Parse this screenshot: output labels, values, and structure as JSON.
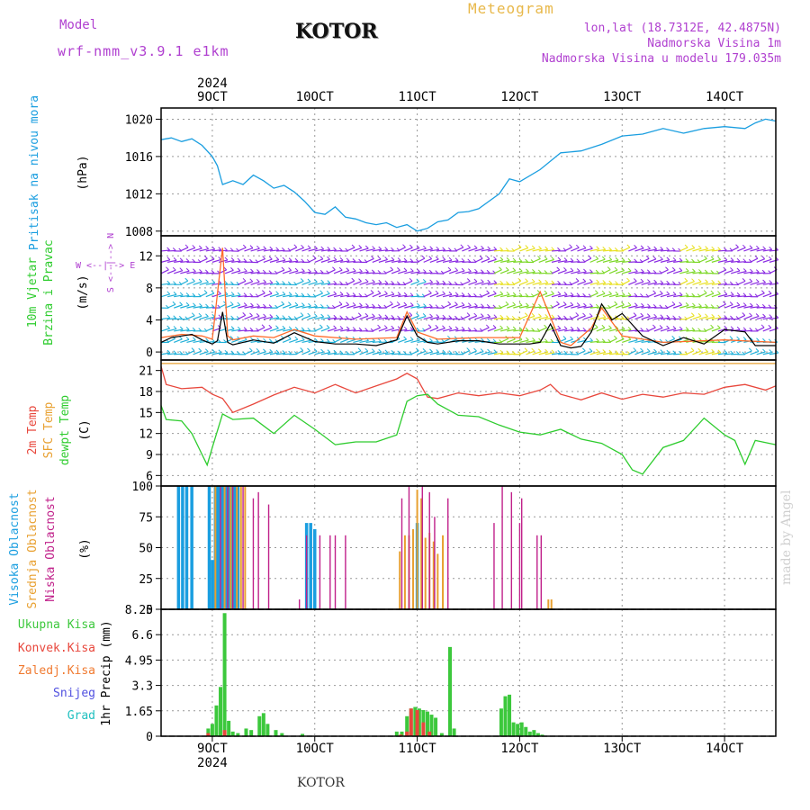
{
  "header": {
    "model_label": "Model",
    "model_name": "wrf-nmm_v3.9.1 e1km",
    "title": "KOTOR",
    "meteogram": "Meteogram",
    "lonlat": "lon,lat (18.7312E, 42.4875N)",
    "altitude": "Nadmorska Visina 1m",
    "model_altitude": "Nadmorska Visina u modelu 179.035m"
  },
  "footer": {
    "place": "KOTOR",
    "made_by": "made by Angel"
  },
  "time_axis": {
    "year": "2024",
    "ticks": [
      {
        "label": "9OCT",
        "day": 9
      },
      {
        "label": "10OCT",
        "day": 10
      },
      {
        "label": "11OCT",
        "day": 11
      },
      {
        "label": "12OCT",
        "day": 12
      },
      {
        "label": "13OCT",
        "day": 13
      },
      {
        "label": "14OCT",
        "day": 14
      }
    ],
    "range_days": [
      8.5,
      14.5
    ]
  },
  "colors": {
    "pressure": "#1a9ee0",
    "wind_speed": "#000000",
    "wind_gust": "#ff6a2a",
    "temp2m": "#e8473c",
    "sfc_temp": "#e8a030",
    "dewpoint": "#2ecc2e",
    "high_cloud": "#1a9ee0",
    "mid_cloud": "#e8a030",
    "low_cloud": "#c0208a",
    "total_precip": "#3cc83c",
    "conv_precip": "#e8473c",
    "frozen_precip": "#f07a30",
    "snow": "#5050e0",
    "hail": "#20c0c0",
    "wind_arrow_purple": "#8a2be2",
    "wind_arrow_cyan": "#20b0d8",
    "wind_arrow_green": "#7ed82a"
  },
  "panels": {
    "pressure": {
      "label1": "Pritisak na nivou mora",
      "label2": "(hPa)"
    },
    "wind": {
      "label1": "10m Vjetar",
      "label2": "Brzina i Pravac",
      "label3": "(m/s)",
      "compass": "W <--|--> E",
      "compass_v": "S <--|--> N"
    },
    "temp": {
      "label1": "2m Temp",
      "label2": "SFC Temp",
      "label3": "dewpt Temp",
      "label4": "(C)"
    },
    "cloud": {
      "label1": "Visoka Oblacnost",
      "label2": "Srednja Oblacnost",
      "label3": "Niska Oblacnost",
      "label4": "(%)"
    },
    "precip": {
      "legend": [
        "Ukupna Kisa",
        "Konvek.Kisa",
        "Zaledj.Kisa",
        "Snijeg",
        "Grad"
      ],
      "ylabel": "1hr Precip (mm)"
    }
  },
  "chart_data": [
    {
      "type": "line",
      "title": "",
      "ylabel": "(hPa)",
      "ylim": [
        1007.5,
        1021.2
      ],
      "yticks": [
        1008,
        1012,
        1016,
        1020
      ],
      "series": [
        {
          "name": "Pritisak na nivou mora",
          "x": [
            8.5,
            8.6,
            8.7,
            8.8,
            8.9,
            9.0,
            9.05,
            9.1,
            9.2,
            9.3,
            9.4,
            9.5,
            9.6,
            9.7,
            9.8,
            9.9,
            10.0,
            10.1,
            10.2,
            10.3,
            10.4,
            10.5,
            10.6,
            10.7,
            10.8,
            10.9,
            11.0,
            11.1,
            11.2,
            11.3,
            11.4,
            11.5,
            11.6,
            11.7,
            11.8,
            11.9,
            12.0,
            12.2,
            12.4,
            12.6,
            12.8,
            13.0,
            13.2,
            13.4,
            13.6,
            13.8,
            14.0,
            14.2,
            14.3,
            14.4,
            14.5
          ],
          "values": [
            1017.8,
            1018.0,
            1017.6,
            1017.9,
            1017.2,
            1016.0,
            1015.0,
            1013.0,
            1013.4,
            1013.0,
            1014.0,
            1013.4,
            1012.6,
            1012.9,
            1012.2,
            1011.2,
            1010.0,
            1009.8,
            1010.6,
            1009.5,
            1009.3,
            1008.9,
            1008.7,
            1008.9,
            1008.4,
            1008.7,
            1008.0,
            1008.3,
            1009.0,
            1009.2,
            1010.0,
            1010.1,
            1010.4,
            1011.2,
            1012.0,
            1013.6,
            1013.3,
            1014.6,
            1016.4,
            1016.6,
            1017.3,
            1018.2,
            1018.4,
            1019.0,
            1018.5,
            1019.0,
            1019.2,
            1019.0,
            1019.6,
            1020.0,
            1019.8
          ]
        }
      ]
    },
    {
      "type": "line",
      "title": "",
      "ylabel": "(m/s)",
      "ylim": [
        -1,
        14.5
      ],
      "yticks": [
        0,
        4,
        8,
        12
      ],
      "series": [
        {
          "name": "wind speed",
          "x": [
            8.5,
            8.6,
            8.7,
            8.8,
            8.9,
            9.0,
            9.05,
            9.1,
            9.15,
            9.2,
            9.4,
            9.6,
            9.8,
            10.0,
            10.2,
            10.4,
            10.6,
            10.8,
            10.9,
            11.0,
            11.1,
            11.2,
            11.4,
            11.6,
            11.8,
            12.0,
            12.1,
            12.2,
            12.3,
            12.4,
            12.5,
            12.6,
            12.7,
            12.8,
            12.9,
            13.0,
            13.2,
            13.4,
            13.6,
            13.8,
            14.0,
            14.2,
            14.3,
            14.5
          ],
          "values": [
            1.2,
            1.8,
            2.0,
            2.2,
            1.5,
            1.0,
            1.4,
            5.0,
            1.2,
            0.9,
            1.5,
            1.1,
            2.4,
            1.3,
            1.0,
            1.0,
            0.8,
            1.5,
            4.5,
            2.0,
            1.2,
            1.0,
            1.4,
            1.4,
            1.0,
            1.0,
            1.0,
            1.2,
            3.5,
            0.8,
            0.5,
            0.7,
            2.5,
            6.0,
            4.0,
            4.8,
            2.0,
            0.8,
            1.8,
            1.0,
            2.8,
            2.5,
            0.8,
            0.8
          ]
        },
        {
          "name": "wind gust",
          "x": [
            8.5,
            8.7,
            8.9,
            9.0,
            9.1,
            9.15,
            9.2,
            9.4,
            9.6,
            9.8,
            10.0,
            10.4,
            10.8,
            10.9,
            11.0,
            11.2,
            11.6,
            12.0,
            12.2,
            12.4,
            12.5,
            12.7,
            12.8,
            13.0,
            13.4,
            14.0,
            14.5
          ],
          "values": [
            1.8,
            2.2,
            2.0,
            1.6,
            13.0,
            2.0,
            1.5,
            2.0,
            1.8,
            2.8,
            2.0,
            1.6,
            1.8,
            5.0,
            2.5,
            1.6,
            1.8,
            1.8,
            7.5,
            1.2,
            0.8,
            3.0,
            5.5,
            2.0,
            1.2,
            1.5,
            1.2
          ]
        }
      ]
    },
    {
      "type": "line",
      "title": "",
      "ylabel": "(C)",
      "ylim": [
        4.5,
        22.5
      ],
      "yticks": [
        6,
        9,
        12,
        15,
        18,
        21
      ],
      "series": [
        {
          "name": "2m Temp",
          "x": [
            8.5,
            8.55,
            8.7,
            8.9,
            9.0,
            9.1,
            9.2,
            9.4,
            9.6,
            9.8,
            10.0,
            10.2,
            10.4,
            10.6,
            10.8,
            10.9,
            11.0,
            11.1,
            11.2,
            11.4,
            11.6,
            11.8,
            12.0,
            12.2,
            12.3,
            12.4,
            12.6,
            12.8,
            13.0,
            13.2,
            13.4,
            13.6,
            13.8,
            14.0,
            14.2,
            14.4,
            14.5
          ],
          "values": [
            21.6,
            19.0,
            18.4,
            18.6,
            17.6,
            17.0,
            15.0,
            16.2,
            17.5,
            18.6,
            17.8,
            19.0,
            17.8,
            18.8,
            19.8,
            20.6,
            19.8,
            17.2,
            17.0,
            17.8,
            17.4,
            17.8,
            17.4,
            18.2,
            19.0,
            17.6,
            16.8,
            17.8,
            16.9,
            17.6,
            17.2,
            17.8,
            17.6,
            18.6,
            19.0,
            18.2,
            18.8
          ]
        },
        {
          "name": "SFC Temp",
          "x": [
            8.5,
            14.5
          ],
          "values": [
            22.0,
            22.0
          ]
        },
        {
          "name": "dewpt Temp",
          "x": [
            8.5,
            8.55,
            8.7,
            8.8,
            8.9,
            8.95,
            9.0,
            9.1,
            9.2,
            9.4,
            9.6,
            9.8,
            10.0,
            10.2,
            10.4,
            10.6,
            10.8,
            10.9,
            11.0,
            11.1,
            11.2,
            11.4,
            11.6,
            11.8,
            12.0,
            12.2,
            12.4,
            12.6,
            12.8,
            13.0,
            13.1,
            13.2,
            13.4,
            13.6,
            13.8,
            14.0,
            14.1,
            14.2,
            14.3,
            14.5
          ],
          "values": [
            16.0,
            14.0,
            13.8,
            12.0,
            9.0,
            7.5,
            10.0,
            14.8,
            14.0,
            14.2,
            12.0,
            14.6,
            12.6,
            10.4,
            10.8,
            10.8,
            11.8,
            16.6,
            17.4,
            17.6,
            16.2,
            14.6,
            14.4,
            13.2,
            12.2,
            11.8,
            12.6,
            11.2,
            10.6,
            9.0,
            6.8,
            6.2,
            10.0,
            11.0,
            14.2,
            11.8,
            11.0,
            7.6,
            11.0,
            10.4
          ]
        }
      ]
    },
    {
      "type": "bar",
      "title": "",
      "ylabel": "(%)",
      "ylim": [
        0,
        100
      ],
      "yticks": [
        0,
        25,
        50,
        75,
        100
      ],
      "series": [
        {
          "name": "Visoka Oblacnost",
          "x": [
            8.67,
            8.71,
            8.75,
            8.8,
            8.97,
            9.0,
            9.03,
            9.06,
            9.1,
            9.13,
            9.16,
            9.19,
            9.22,
            9.25,
            9.92,
            9.96,
            10.0,
            11.0
          ],
          "values": [
            100,
            100,
            100,
            100,
            100,
            40,
            100,
            100,
            100,
            100,
            100,
            100,
            100,
            100,
            70,
            70,
            65,
            70
          ]
        },
        {
          "name": "Srednja Oblacnost",
          "x": [
            9.03,
            9.12,
            9.18,
            9.24,
            9.28,
            9.32,
            10.83,
            10.88,
            10.92,
            10.96,
            11.0,
            11.04,
            11.08,
            11.12,
            11.16,
            11.2,
            11.25,
            12.28,
            12.31
          ],
          "values": [
            100,
            100,
            100,
            100,
            100,
            100,
            47,
            60,
            60,
            65,
            97,
            90,
            58,
            62,
            55,
            45,
            60,
            8,
            8
          ]
        },
        {
          "name": "Niska Oblacnost",
          "x": [
            9.08,
            9.15,
            9.2,
            9.3,
            9.4,
            9.45,
            9.55,
            9.85,
            9.92,
            10.05,
            10.15,
            10.2,
            10.3,
            10.85,
            10.92,
            11.05,
            11.12,
            11.17,
            11.3,
            11.75,
            11.83,
            11.92,
            12.0,
            12.02,
            12.17,
            12.21
          ],
          "values": [
            100,
            100,
            100,
            100,
            90,
            95,
            85,
            8,
            60,
            60,
            60,
            60,
            60,
            90,
            100,
            100,
            95,
            75,
            90,
            70,
            100,
            95,
            70,
            90,
            60,
            60
          ]
        }
      ]
    },
    {
      "type": "bar",
      "title": "",
      "ylabel": "1hr Precip (mm)",
      "ylim": [
        0,
        8.25
      ],
      "yticks": [
        0,
        1.65,
        3.3,
        4.95,
        6.6,
        8.25
      ],
      "series": [
        {
          "name": "Ukupna Kisa",
          "x": [
            8.96,
            9.0,
            9.04,
            9.08,
            9.12,
            9.16,
            9.2,
            9.25,
            9.33,
            9.38,
            9.46,
            9.5,
            9.54,
            9.62,
            9.68,
            9.88,
            10.8,
            10.85,
            10.9,
            10.94,
            10.98,
            11.02,
            11.06,
            11.1,
            11.14,
            11.18,
            11.24,
            11.32,
            11.36,
            11.82,
            11.86,
            11.9,
            11.94,
            11.98,
            12.02,
            12.06,
            12.1,
            12.14,
            12.18,
            12.22
          ],
          "values": [
            0.5,
            0.8,
            2.0,
            3.2,
            8.0,
            1.0,
            0.3,
            0.2,
            0.5,
            0.4,
            1.3,
            1.5,
            0.8,
            0.4,
            0.2,
            0.15,
            0.3,
            0.3,
            1.3,
            1.8,
            1.9,
            1.8,
            1.7,
            1.6,
            1.4,
            1.2,
            0.2,
            5.8,
            0.5,
            1.8,
            2.6,
            2.7,
            0.9,
            0.8,
            0.9,
            0.6,
            0.3,
            0.4,
            0.2,
            0.1
          ]
        },
        {
          "name": "Konvek.Kisa",
          "x": [
            8.96,
            9.12,
            10.84,
            10.9,
            10.94,
            11.0,
            11.06,
            11.12
          ],
          "values": [
            0.2,
            0.4,
            0.1,
            0.3,
            1.8,
            1.7,
            0.9,
            0.3
          ]
        },
        {
          "name": "Zaledj.Kisa",
          "x": [],
          "values": []
        },
        {
          "name": "Snijeg",
          "x": [],
          "values": []
        },
        {
          "name": "Grad",
          "x": [],
          "values": []
        }
      ]
    }
  ]
}
